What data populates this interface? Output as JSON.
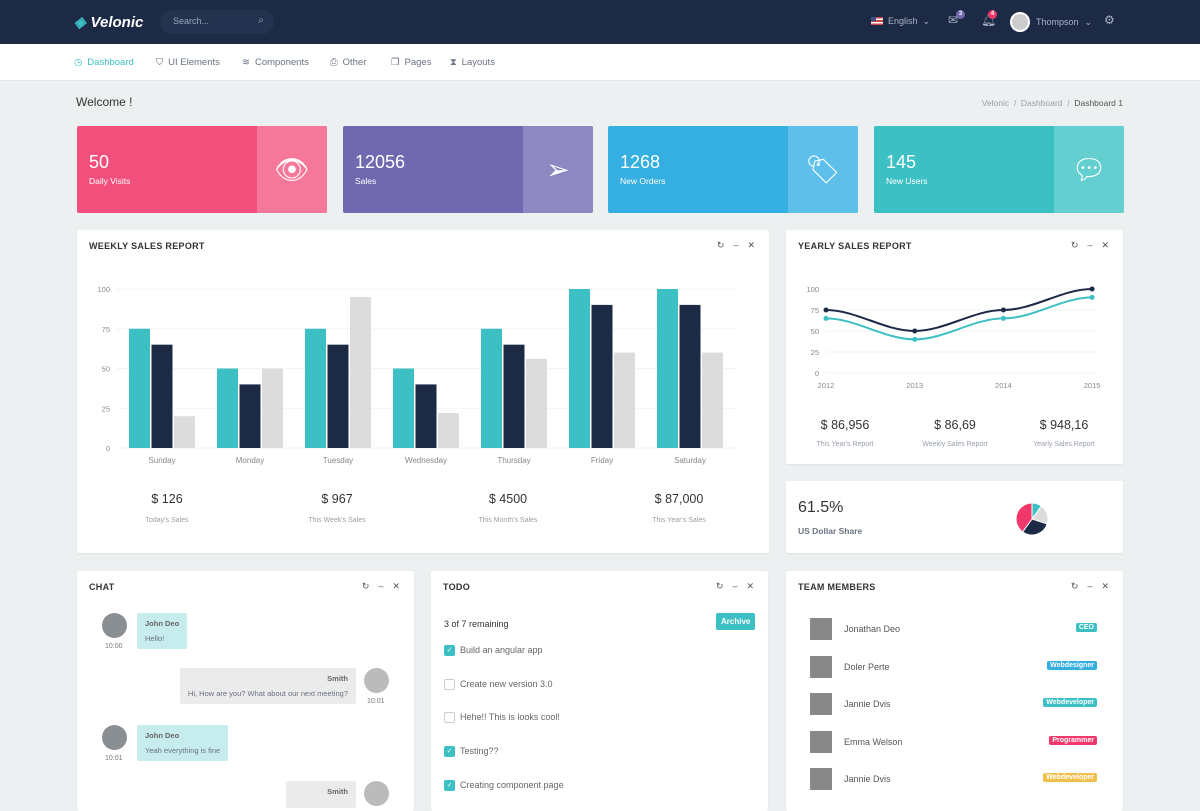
{
  "app": {
    "name": "Velonic",
    "search_placeholder": "Search...",
    "language": "English",
    "mail_count": "3",
    "notif_count": "4",
    "user": "Thompson"
  },
  "nav": [
    {
      "label": "Dashboard",
      "icon": "dashboard-icon",
      "active": true
    },
    {
      "label": "UI Elements",
      "icon": "basket-icon"
    },
    {
      "label": "Components",
      "icon": "layers-icon"
    },
    {
      "label": "Other",
      "icon": "printer-icon"
    },
    {
      "label": "Pages",
      "icon": "file-icon"
    },
    {
      "label": "Layouts",
      "icon": "hourglass-icon"
    }
  ],
  "page": {
    "title": "Welcome !",
    "breadcrumb": [
      "Velonic",
      "Dashboard",
      "Dashboard 1"
    ]
  },
  "stats": [
    {
      "value": "50",
      "label": "Daily Visits",
      "icon": "eye-icon",
      "color": "#f24f7c",
      "side": "#f5779a"
    },
    {
      "value": "12056",
      "label": "Sales",
      "icon": "paper-plane-icon",
      "color": "#7169b0",
      "side": "#8e88c2"
    },
    {
      "value": "1268",
      "label": "New Orders",
      "icon": "tag-icon",
      "color": "#35aee1",
      "side": "#5ec0ea"
    },
    {
      "value": "145",
      "label": "New Users",
      "icon": "chat-bubbles-icon",
      "color": "#3cc0c3",
      "side": "#64cfd1"
    }
  ],
  "weekly": {
    "title": "WEEKLY SALES REPORT",
    "summary": [
      {
        "value": "$ 126",
        "label": "Today's Sales"
      },
      {
        "value": "$ 967",
        "label": "This Week's Sales"
      },
      {
        "value": "$ 4500",
        "label": "This Month's Sales"
      },
      {
        "value": "$ 87,000",
        "label": "This Year's Sales"
      }
    ]
  },
  "yearly": {
    "title": "YEARLY SALES REPORT",
    "summary": [
      {
        "value": "$ 86,956",
        "label": "This Year's Report"
      },
      {
        "value": "$ 86,69",
        "label": "Weekly Sales Report"
      },
      {
        "value": "$ 948,16",
        "label": "Yearly Sales Report"
      }
    ]
  },
  "share": {
    "value": "61.5%",
    "label": "US Dollar Share",
    "pie": [
      {
        "value": 40,
        "color": "#f0386b"
      },
      {
        "value": 10,
        "color": "#3cc0c3"
      },
      {
        "value": 20,
        "color": "#dcdcdc"
      },
      {
        "value": 30,
        "color": "#1c2a45"
      }
    ]
  },
  "chart_data": [
    {
      "type": "bar",
      "categories": [
        "Sunday",
        "Monday",
        "Tuesday",
        "Wednesday",
        "Thursday",
        "Friday",
        "Saturday"
      ],
      "ylim": [
        0,
        100
      ],
      "yticks": [
        "0",
        "25",
        "50",
        "75",
        "100"
      ],
      "grid": true,
      "series": [
        {
          "values": [
            75,
            50,
            75,
            50,
            75,
            100,
            100
          ],
          "color": "#3cc0c3"
        },
        {
          "values": [
            65,
            40,
            65,
            40,
            65,
            90,
            90
          ],
          "color": "#1c2a45"
        },
        {
          "values": [
            20,
            50,
            95,
            22,
            56,
            60,
            60
          ],
          "color": "#dcdcdc"
        }
      ]
    },
    {
      "type": "line",
      "categories": [
        "2012",
        "2013",
        "2014",
        "2015"
      ],
      "ylim": [
        0,
        100
      ],
      "yticks": [
        "0",
        "25",
        "50",
        "75",
        "100"
      ],
      "grid": true,
      "series": [
        {
          "values": [
            75,
            50,
            75,
            100
          ],
          "color": "#1c2a45"
        },
        {
          "values": [
            65,
            40,
            65,
            90
          ],
          "color": "#3cc0c3"
        }
      ]
    }
  ],
  "chat": {
    "title": "CHAT",
    "messages": [
      {
        "name": "John Deo",
        "text": "Hello!",
        "time": "10:00",
        "side": "left"
      },
      {
        "name": "Smith",
        "text": "Hi, How are you? What about our next meeting?",
        "time": "10:01",
        "side": "right"
      },
      {
        "name": "John Deo",
        "text": "Yeah everything is fine",
        "time": "10:01",
        "side": "left"
      },
      {
        "name": "Smith",
        "text": "",
        "time": "",
        "side": "right"
      }
    ]
  },
  "todo": {
    "title": "TODO",
    "remaining": "3 of 7 remaining",
    "archive": "Archive",
    "items": [
      {
        "text": "Build an angular app",
        "done": true
      },
      {
        "text": "Create new version 3.0",
        "done": false
      },
      {
        "text": "Hehe!! This is looks cool!",
        "done": false
      },
      {
        "text": "Testing??",
        "done": true
      },
      {
        "text": "Creating component page",
        "done": true
      }
    ]
  },
  "team": {
    "title": "TEAM MEMBERS",
    "members": [
      {
        "name": "Jonathan Deo",
        "role": "CEO",
        "color": "#3cc0c3"
      },
      {
        "name": "Doler Perte",
        "role": "Webdesigner",
        "color": "#35aee1"
      },
      {
        "name": "Jannie Dvis",
        "role": "Webdeveloper",
        "color": "#3cc0c3"
      },
      {
        "name": "Emma Welson",
        "role": "Programmer",
        "color": "#f0386b"
      },
      {
        "name": "Jannie Dvis",
        "role": "Webdeveloper",
        "color": "#f1c04c"
      }
    ]
  }
}
